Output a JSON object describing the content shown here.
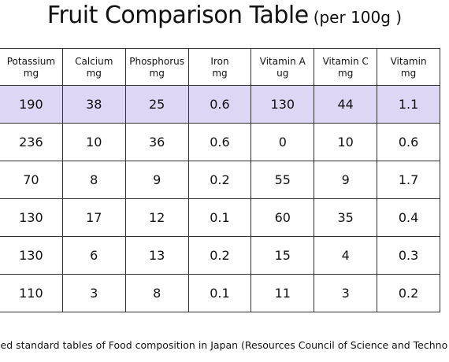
{
  "title": {
    "main": "Fruit Comparison Table",
    "sub": "(per 100g )"
  },
  "table": {
    "columns": [
      {
        "name": "Potassium",
        "unit": "mg"
      },
      {
        "name": "Calcium",
        "unit": "mg"
      },
      {
        "name": "Phosphorus",
        "unit": "mg"
      },
      {
        "name": "Iron",
        "unit": "mg"
      },
      {
        "name": "Vitamin A",
        "unit": "ug"
      },
      {
        "name": "Vitamin C",
        "unit": "mg"
      },
      {
        "name": "Vitamin",
        "unit": "mg"
      }
    ],
    "rows": [
      {
        "highlight": true,
        "cells": [
          "190",
          "38",
          "25",
          "0.6",
          "130",
          "44",
          "1.1"
        ]
      },
      {
        "highlight": false,
        "cells": [
          "236",
          "10",
          "36",
          "0.6",
          "0",
          "10",
          "0.6"
        ]
      },
      {
        "highlight": false,
        "cells": [
          "70",
          "8",
          "9",
          "0.2",
          "55",
          "9",
          "1.7"
        ]
      },
      {
        "highlight": false,
        "cells": [
          "130",
          "17",
          "12",
          "0.1",
          "60",
          "35",
          "0.4"
        ]
      },
      {
        "highlight": false,
        "cells": [
          "130",
          "6",
          "13",
          "0.2",
          "15",
          "4",
          "0.3"
        ]
      },
      {
        "highlight": false,
        "cells": [
          "110",
          "3",
          "8",
          "0.1",
          "11",
          "3",
          "0.2"
        ]
      }
    ],
    "highlight_color": "#ddd6f5"
  },
  "footer": {
    "text": "sed standard tables of Food composition in Japan (Resources Council of Science and Techno"
  }
}
